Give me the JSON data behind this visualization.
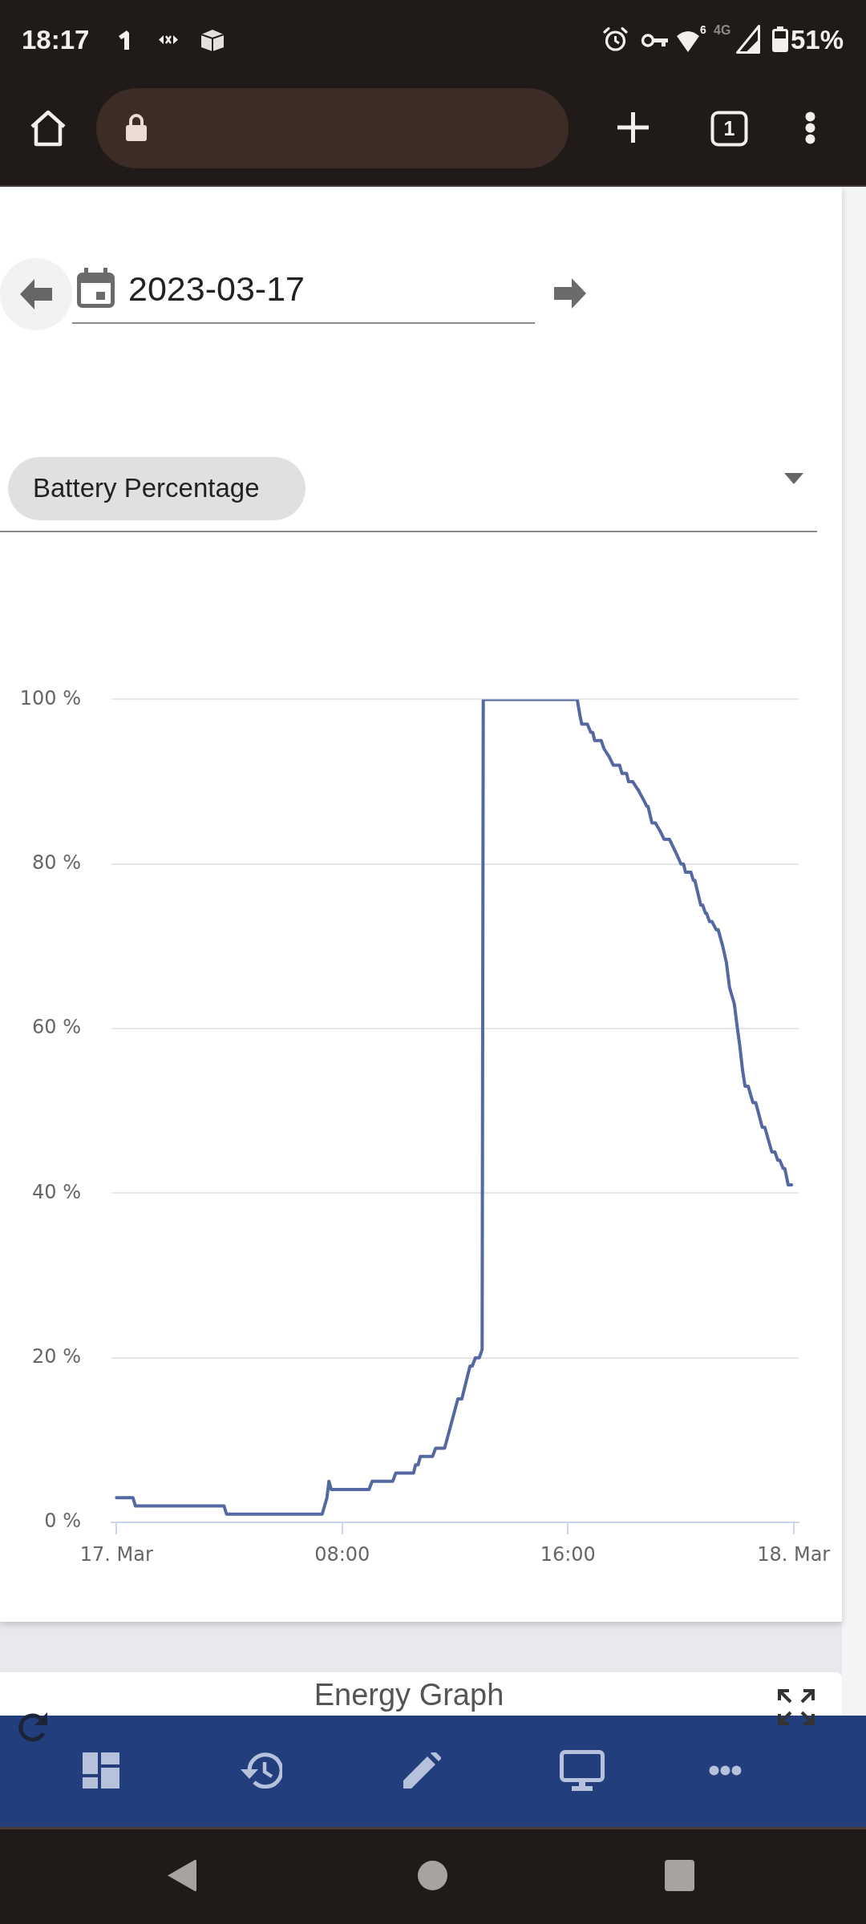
{
  "chart_data": {
    "type": "line",
    "title": "Battery Percentage",
    "subtitle": "2023-03-17",
    "annotations": [
      "18:17",
      "4G",
      "6",
      "51%",
      "1",
      "Energy Graph"
    ],
    "x": [
      0,
      0.58,
      0.67,
      3.81,
      3.9,
      7.29,
      7.46,
      7.53,
      7.61,
      8.95,
      9.06,
      9.79,
      9.9,
      10.53,
      10.6,
      10.69,
      10.77,
      11.2,
      11.31,
      11.63,
      12.1,
      12.24,
      12.53,
      12.61,
      12.72,
      12.86,
      12.96,
      13.0,
      16.33,
      16.43,
      16.49,
      16.69,
      16.81,
      16.88,
      16.95,
      17.18,
      17.28,
      17.47,
      17.61,
      17.83,
      17.92,
      18.08,
      18.15,
      18.3,
      18.49,
      18.65,
      18.8,
      18.84,
      18.98,
      19.1,
      19.27,
      19.41,
      19.6,
      19.74,
      19.88,
      20.01,
      20.1,
      20.17,
      20.36,
      20.45,
      20.5,
      20.71,
      20.78,
      20.88,
      20.92,
      21.02,
      21.11,
      21.26,
      21.33,
      21.49,
      21.62,
      21.73,
      21.9,
      22.01,
      22.09,
      22.19,
      22.28,
      22.39,
      22.56,
      22.66,
      22.89,
      22.98,
      23.23,
      23.34,
      23.44,
      23.51,
      23.63,
      23.69,
      23.81,
      23.93
    ],
    "series": [
      {
        "color": "#5468a1",
        "values": [
          3,
          3,
          2,
          2,
          1,
          1,
          3,
          5,
          4,
          4,
          5,
          5,
          6,
          6,
          7,
          7,
          8,
          8,
          9,
          9,
          15,
          15,
          19,
          19,
          20,
          20,
          21,
          100,
          100,
          98,
          97,
          97,
          96,
          96,
          95,
          95,
          94,
          93,
          92,
          92,
          91,
          91,
          90,
          90,
          89,
          88,
          87,
          87,
          85,
          85,
          84,
          83,
          83,
          82,
          81,
          80,
          80,
          79,
          79,
          78,
          78,
          75,
          75,
          74,
          74,
          73,
          73,
          72,
          72,
          70,
          68,
          65,
          63,
          60,
          58,
          55,
          53,
          53,
          51,
          51,
          48,
          48,
          45,
          45,
          44,
          44,
          43,
          43,
          41,
          41
        ]
      }
    ],
    "xlim": [
      -0.18,
      24.18
    ],
    "xticks": [
      {
        "value": 0,
        "label": "17. Mar"
      },
      {
        "value": 8,
        "label": "08:00"
      },
      {
        "value": 16,
        "label": "16:00"
      },
      {
        "value": 24,
        "label": "18. Mar"
      }
    ],
    "ylim": [
      0,
      100
    ],
    "yticks": [
      {
        "value": 0,
        "label": "0 %"
      },
      {
        "value": 20,
        "label": "20 %"
      },
      {
        "value": 40,
        "label": "40 %"
      },
      {
        "value": 60,
        "label": "60 %"
      },
      {
        "value": 80,
        "label": "80 %"
      },
      {
        "value": 100,
        "label": "100 %"
      }
    ],
    "grid": "y"
  }
}
